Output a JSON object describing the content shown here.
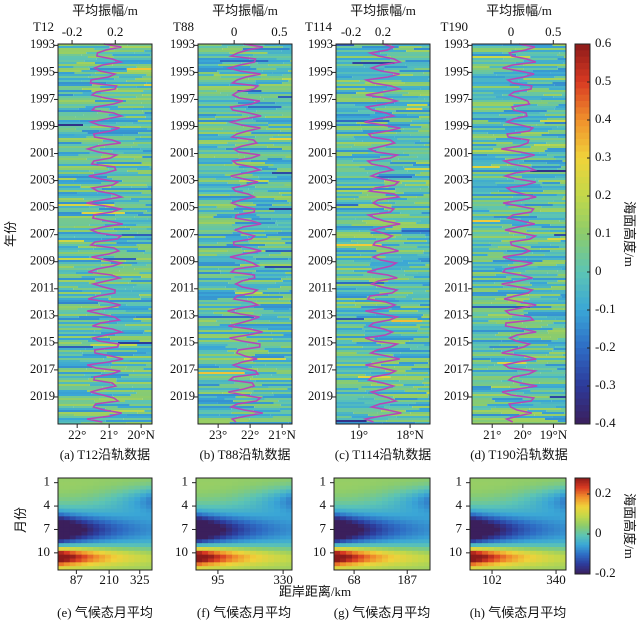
{
  "chart_data": [
    {
      "type": "heatmap",
      "title": "T12",
      "caption": "(a) T12沿轨数据",
      "ylabel": "年份",
      "x2label": "平均振幅/m",
      "x2lim": [
        -0.33,
        0.54
      ],
      "x2ticks": [
        -0.2,
        0.2
      ],
      "xlim": [
        22.6,
        19.66
      ],
      "xticks": [
        {
          "value": 22,
          "label": "22°"
        },
        {
          "value": 21,
          "label": "21°"
        },
        {
          "value": 20,
          "label": "20°N"
        }
      ],
      "ylim": [
        2021,
        1992.9
      ],
      "yticks": [
        1993,
        1995,
        1997,
        1999,
        2001,
        2003,
        2005,
        2007,
        2009,
        2011,
        2013,
        2015,
        2017,
        2019
      ]
    },
    {
      "type": "heatmap",
      "title": "T88",
      "caption": "(b) T88沿轨数据",
      "x2label": "平均振幅/m",
      "x2lim": [
        -0.4,
        0.64
      ],
      "x2ticks": [
        0,
        0.5
      ],
      "xlim": [
        23.63,
        20.69
      ],
      "xticks": [
        {
          "value": 23,
          "label": "23°"
        },
        {
          "value": 22,
          "label": "22°"
        },
        {
          "value": 21,
          "label": "21°N"
        }
      ],
      "ylim": [
        2021,
        1992.9
      ],
      "yticks": [
        1993,
        1995,
        1997,
        1999,
        2001,
        2003,
        2005,
        2007,
        2009,
        2011,
        2013,
        2015,
        2017,
        2019
      ]
    },
    {
      "type": "heatmap",
      "title": "T114",
      "caption": "(c) T114沿轨数据",
      "x2label": "平均振幅/m",
      "x2lim": [
        -0.39,
        0.79
      ],
      "x2ticks": [
        -0.2,
        0.2
      ],
      "xlim": [
        19.45,
        17.61
      ],
      "xticks": [
        {
          "value": 19,
          "label": "19°"
        },
        {
          "value": 18,
          "label": "18°N"
        }
      ],
      "ylim": [
        2021,
        1992.9
      ],
      "yticks": [
        1993,
        1995,
        1997,
        1999,
        2001,
        2003,
        2005,
        2007,
        2009,
        2011,
        2013,
        2015,
        2017,
        2019
      ]
    },
    {
      "type": "heatmap",
      "title": "T190",
      "caption": "(d) T190沿轨数据",
      "x2label": "平均振幅/m",
      "x2lim": [
        -0.46,
        0.65
      ],
      "x2ticks": [
        0,
        0.5
      ],
      "xlim": [
        21.66,
        18.59
      ],
      "xticks": [
        {
          "value": 21,
          "label": "21°"
        },
        {
          "value": 20,
          "label": "20°"
        },
        {
          "value": 19,
          "label": "19°N"
        }
      ],
      "ylim": [
        2021,
        1992.9
      ],
      "yticks": [
        1993,
        1995,
        1997,
        1999,
        2001,
        2003,
        2005,
        2007,
        2009,
        2011,
        2013,
        2015,
        2017,
        2019
      ]
    },
    {
      "type": "colorbar",
      "label": "海面高度/m",
      "ylim": [
        -0.4,
        0.6
      ],
      "yticks": [
        -0.4,
        -0.3,
        -0.2,
        -0.1,
        0,
        0.1,
        0.2,
        0.3,
        0.4,
        0.5,
        0.6
      ]
    },
    {
      "type": "climatology",
      "caption": "(e) 气候态月平均",
      "ylabel": "月份",
      "xlim": [
        18,
        371
      ],
      "xticks": [
        87,
        210,
        325
      ],
      "ylim": [
        12.2,
        0.4
      ],
      "yticks": [
        1,
        4,
        7,
        10
      ]
    },
    {
      "type": "climatology",
      "caption": "(f) 气候态月平均",
      "xlabel": "距岸距离/km",
      "xlim": [
        16,
        362
      ],
      "xticks": [
        95,
        330
      ],
      "ylim": [
        12.2,
        0.4
      ],
      "yticks": [
        1,
        4,
        7,
        10
      ]
    },
    {
      "type": "climatology",
      "caption": "(g) 气候态月平均",
      "xlim": [
        23,
        238
      ],
      "xticks": [
        68,
        187
      ],
      "ylim": [
        12.2,
        0.4
      ],
      "yticks": [
        1,
        4,
        7,
        10
      ]
    },
    {
      "type": "climatology",
      "caption": "(h) 气候态月平均",
      "xlim": [
        20,
        377
      ],
      "xticks": [
        102,
        340
      ],
      "ylim": [
        12.2,
        0.4
      ],
      "yticks": [
        1,
        4,
        7,
        10
      ]
    },
    {
      "type": "colorbar",
      "label": "海面高度/m",
      "ylim": [
        -0.2,
        0.28
      ],
      "yticks": [
        -0.2,
        0,
        0.2
      ]
    }
  ]
}
